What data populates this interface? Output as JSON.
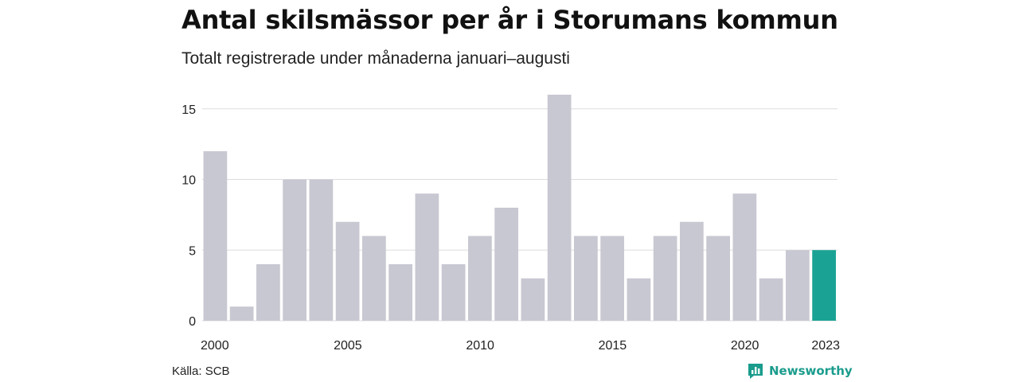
{
  "title": "Antal skilsmässor per år i Storumans kommun",
  "subtitle": "Totalt registrerade under månaderna januari–augusti",
  "source": "Källa: SCB",
  "brand": "Newsworthy",
  "colors": {
    "bar": "#c8c8d2",
    "highlight": "#1aa394",
    "grid": "#dddddd",
    "brand": "#1a9c8c"
  },
  "chart_data": {
    "type": "bar",
    "categories": [
      "2000",
      "2001",
      "2002",
      "2003",
      "2004",
      "2005",
      "2006",
      "2007",
      "2008",
      "2009",
      "2010",
      "2011",
      "2012",
      "2013",
      "2014",
      "2015",
      "2016",
      "2017",
      "2018",
      "2019",
      "2020",
      "2021",
      "2022",
      "2023"
    ],
    "values": [
      12,
      1,
      4,
      10,
      10,
      7,
      6,
      4,
      9,
      4,
      6,
      8,
      3,
      16,
      6,
      6,
      3,
      6,
      7,
      6,
      9,
      3,
      5,
      5
    ],
    "highlight_category": "2023",
    "x_tick_labels": [
      "2000",
      "2005",
      "2010",
      "2015",
      "2020",
      "2023"
    ],
    "y_ticks": [
      0,
      5,
      10,
      15
    ],
    "ylim": [
      0,
      16
    ],
    "grid": true,
    "legend": false
  }
}
